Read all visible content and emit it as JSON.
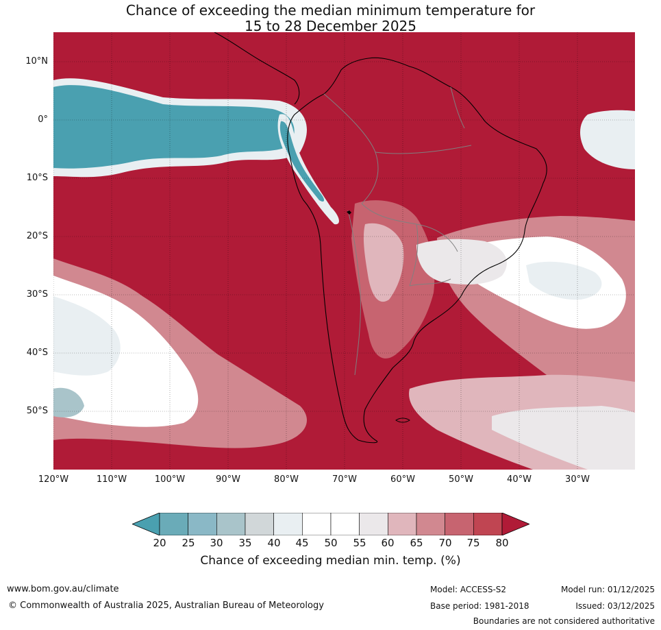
{
  "title": {
    "line1": "Chance of exceeding the median minimum temperature for",
    "line2": "15 to 28 December 2025"
  },
  "map": {
    "lat_ticks": [
      "10°N",
      "0°",
      "10°S",
      "20°S",
      "30°S",
      "40°S",
      "50°S"
    ],
    "lon_ticks": [
      "120°W",
      "110°W",
      "100°W",
      "90°W",
      "80°W",
      "70°W",
      "60°W",
      "50°W",
      "40°W",
      "30°W"
    ],
    "lat_range": [
      -60,
      15
    ],
    "lon_range": [
      -120,
      -20
    ],
    "gridlines": true
  },
  "colorbar": {
    "ticks": [
      "20",
      "25",
      "30",
      "35",
      "40",
      "45",
      "50",
      "55",
      "60",
      "65",
      "70",
      "75",
      "80"
    ],
    "colors": [
      "#4aa0b0",
      "#6aabb8",
      "#8ab8c6",
      "#a9c4ca",
      "#d1d7d9",
      "#e9eff2",
      "#ffffff",
      "#ffffff",
      "#ebe8ea",
      "#e0b6bc",
      "#d18890",
      "#c76470",
      "#c04552",
      "#b01b37"
    ],
    "label": "Chance of exceeding median min. temp. (%)"
  },
  "footer": {
    "url": "www.bom.gov.au/climate",
    "copyright": "© Commonwealth of Australia 2025, Australian Bureau of Meteorology",
    "model": "Model: ACCESS-S2",
    "base_period": "Base period: 1981-2018",
    "model_run": "Model run: 01/12/2025",
    "issued": "Issued: 03/12/2025",
    "disclaimer": "Boundaries are not considered authoritative"
  }
}
